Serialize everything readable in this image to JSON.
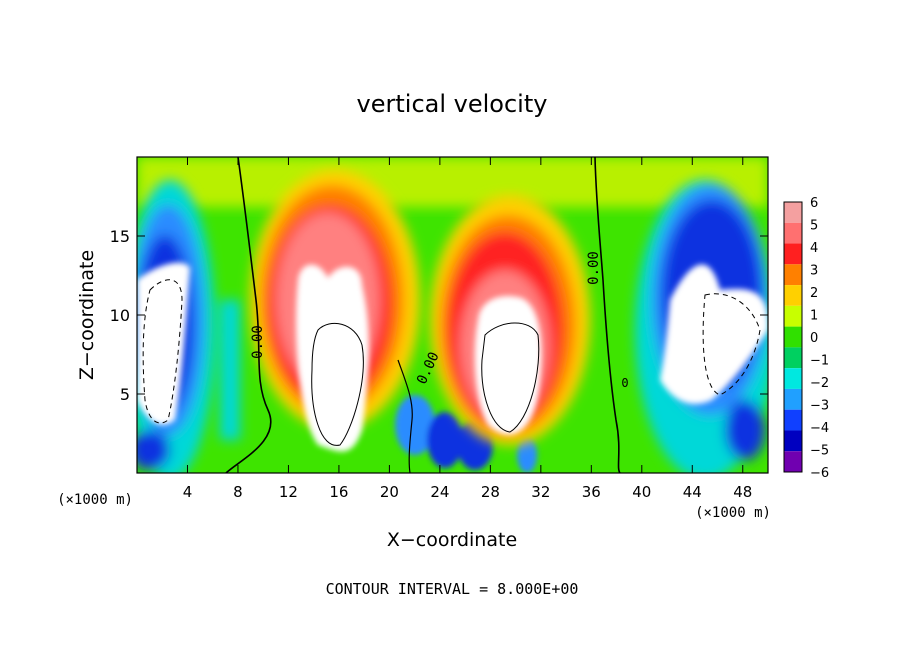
{
  "chart_data": {
    "type": "heatmap",
    "title": "vertical velocity",
    "xlabel": "X−coordinate",
    "ylabel": "Z−coordinate",
    "x_unit_left": "(×1000 m)",
    "x_unit_right": "(×1000 m)",
    "xlim": [
      0,
      50
    ],
    "ylim": [
      0,
      20
    ],
    "x_ticks": [
      4,
      8,
      12,
      16,
      20,
      24,
      28,
      32,
      36,
      40,
      44,
      48
    ],
    "x_tick_labels": [
      "4",
      "8",
      "12",
      "16",
      "20",
      "24",
      "28",
      "32",
      "36",
      "40",
      "44",
      "48"
    ],
    "y_ticks": [
      5,
      10,
      15
    ],
    "y_tick_labels": [
      "5",
      "10",
      "15"
    ],
    "colorbar": {
      "levels": [
        6,
        5,
        4,
        3,
        2,
        1,
        0,
        -1,
        -2,
        -3,
        -4,
        -5,
        -6
      ],
      "labels": [
        "6",
        "5",
        "4",
        "3",
        "2",
        "1",
        "0",
        "−1",
        "−2",
        "−3",
        "−4",
        "−5",
        "−6"
      ],
      "colors": [
        "#f4a0a0",
        "#ff7070",
        "#ff2020",
        "#ff8000",
        "#ffd000",
        "#c8ff00",
        "#30e000",
        "#00d060",
        "#00e8e0",
        "#20a0ff",
        "#1040ff",
        "#0000c0",
        "#7000b0"
      ]
    },
    "contour_labels": [
      "0.00",
      "0.00",
      "0.00",
      "0"
    ],
    "footer": "CONTOUR INTERVAL = 8.000E+00",
    "features": [
      {
        "kind": "updraft",
        "x": 15.5,
        "z": 8.0,
        "value": 6
      },
      {
        "kind": "updraft",
        "x": 29.5,
        "z": 8.5,
        "value": 6
      },
      {
        "kind": "downdraft",
        "x": 2.5,
        "z": 9.0,
        "value": -6
      },
      {
        "kind": "downdraft",
        "x": 45.0,
        "z": 10.0,
        "value": -6
      }
    ]
  },
  "colors": {
    "background_field": "#40e000",
    "axis": "#000000"
  }
}
